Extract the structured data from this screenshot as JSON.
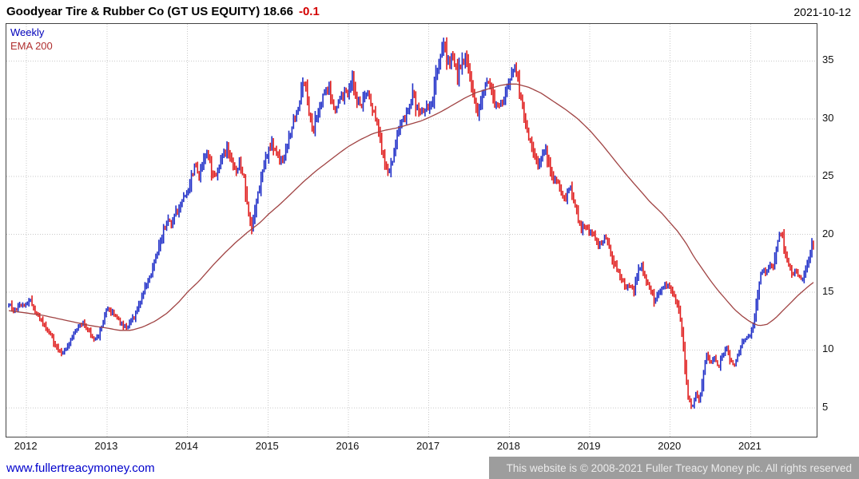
{
  "header": {
    "title": "Goodyear Tire & Rubber Co (GT US EQUITY) 18.66",
    "change": "-0.1",
    "date": "2021-10-12"
  },
  "legend": {
    "series1": "Weekly",
    "series2": "EMA 200"
  },
  "footer": {
    "link": "www.fullertreacymoney.com",
    "copyright": "This website is © 2008-2021 Fuller Treacy Money plc. All rights reserved"
  },
  "colors": {
    "title": "#000000",
    "change_negative": "#d40000",
    "up_bar": "#2130c8",
    "down_bar": "#e01f1f",
    "ema_line": "#a04343",
    "grid": "#c9c9c9",
    "border": "#444444",
    "axis_text": "#111111",
    "legend_weekly": "#0000bb",
    "legend_ema": "#b03030",
    "link": "#0000cc",
    "footer_bg": "#9d9d9d",
    "footer_text": "#ebebeb"
  },
  "chart_data": {
    "type": "candlestick",
    "title": "Goodyear Tire & Rubber Co (GT US EQUITY)",
    "interval": "Weekly",
    "overlay": "EMA 200",
    "last_price": 18.66,
    "change": -0.1,
    "xlabel": "",
    "ylabel": "",
    "grid": true,
    "legend_position": "top-left",
    "x_ticks": [
      2012,
      2013,
      2014,
      2015,
      2016,
      2017,
      2018,
      2019,
      2020,
      2021
    ],
    "y_ticks": [
      5,
      10,
      15,
      20,
      25,
      30,
      35
    ],
    "x_range": [
      2011.75,
      2021.82
    ],
    "y_range": [
      2.5,
      38.2
    ],
    "price_anchors": [
      [
        2011.78,
        14.0
      ],
      [
        2011.85,
        13.3
      ],
      [
        2011.92,
        13.8
      ],
      [
        2012.0,
        14.0
      ],
      [
        2012.05,
        14.3
      ],
      [
        2012.1,
        13.3
      ],
      [
        2012.15,
        12.8
      ],
      [
        2012.2,
        12.3
      ],
      [
        2012.25,
        11.8
      ],
      [
        2012.3,
        11.3
      ],
      [
        2012.35,
        10.5
      ],
      [
        2012.4,
        9.9
      ],
      [
        2012.45,
        9.7
      ],
      [
        2012.5,
        10.3
      ],
      [
        2012.55,
        10.9
      ],
      [
        2012.6,
        11.5
      ],
      [
        2012.65,
        12.0
      ],
      [
        2012.7,
        12.3
      ],
      [
        2012.75,
        11.9
      ],
      [
        2012.8,
        11.4
      ],
      [
        2012.85,
        10.9
      ],
      [
        2012.9,
        11.3
      ],
      [
        2012.95,
        12.4
      ],
      [
        2013.0,
        13.6
      ],
      [
        2013.05,
        13.3
      ],
      [
        2013.1,
        13.0
      ],
      [
        2013.15,
        12.5
      ],
      [
        2013.2,
        12.1
      ],
      [
        2013.25,
        11.9
      ],
      [
        2013.3,
        12.5
      ],
      [
        2013.35,
        13.0
      ],
      [
        2013.4,
        14.0
      ],
      [
        2013.45,
        15.0
      ],
      [
        2013.5,
        15.8
      ],
      [
        2013.55,
        16.5
      ],
      [
        2013.6,
        17.8
      ],
      [
        2013.65,
        19.0
      ],
      [
        2013.7,
        20.3
      ],
      [
        2013.75,
        21.3
      ],
      [
        2013.8,
        20.8
      ],
      [
        2013.85,
        21.8
      ],
      [
        2013.9,
        22.3
      ],
      [
        2013.95,
        23.0
      ],
      [
        2014.0,
        23.8
      ],
      [
        2014.05,
        25.0
      ],
      [
        2014.1,
        26.0
      ],
      [
        2014.15,
        25.0
      ],
      [
        2014.2,
        26.5
      ],
      [
        2014.25,
        27.2
      ],
      [
        2014.3,
        25.5
      ],
      [
        2014.35,
        24.8
      ],
      [
        2014.4,
        26.0
      ],
      [
        2014.45,
        27.0
      ],
      [
        2014.5,
        27.5
      ],
      [
        2014.55,
        26.3
      ],
      [
        2014.6,
        25.3
      ],
      [
        2014.65,
        26.3
      ],
      [
        2014.7,
        25.0
      ],
      [
        2014.75,
        22.0
      ],
      [
        2014.8,
        20.3
      ],
      [
        2014.85,
        22.8
      ],
      [
        2014.9,
        24.3
      ],
      [
        2014.95,
        26.0
      ],
      [
        2015.0,
        27.2
      ],
      [
        2015.05,
        27.8
      ],
      [
        2015.1,
        27.0
      ],
      [
        2015.15,
        26.3
      ],
      [
        2015.2,
        26.8
      ],
      [
        2015.25,
        28.0
      ],
      [
        2015.3,
        29.3
      ],
      [
        2015.35,
        30.5
      ],
      [
        2015.4,
        31.8
      ],
      [
        2015.44,
        33.8
      ],
      [
        2015.48,
        32.3
      ],
      [
        2015.52,
        30.0
      ],
      [
        2015.56,
        28.8
      ],
      [
        2015.6,
        30.0
      ],
      [
        2015.65,
        31.3
      ],
      [
        2015.7,
        32.3
      ],
      [
        2015.75,
        32.8
      ],
      [
        2015.8,
        31.5
      ],
      [
        2015.85,
        30.8
      ],
      [
        2015.9,
        31.8
      ],
      [
        2015.95,
        32.3
      ],
      [
        2016.0,
        32.5
      ],
      [
        2016.05,
        33.3
      ],
      [
        2016.1,
        32.0
      ],
      [
        2016.15,
        30.8
      ],
      [
        2016.2,
        31.8
      ],
      [
        2016.25,
        32.3
      ],
      [
        2016.3,
        31.0
      ],
      [
        2016.35,
        30.0
      ],
      [
        2016.4,
        28.0
      ],
      [
        2016.45,
        26.3
      ],
      [
        2016.5,
        25.5
      ],
      [
        2016.55,
        26.5
      ],
      [
        2016.6,
        28.3
      ],
      [
        2016.65,
        29.3
      ],
      [
        2016.7,
        30.3
      ],
      [
        2016.75,
        31.0
      ],
      [
        2016.8,
        32.0
      ],
      [
        2016.85,
        31.0
      ],
      [
        2016.9,
        30.3
      ],
      [
        2016.95,
        30.8
      ],
      [
        2017.0,
        31.0
      ],
      [
        2017.05,
        32.0
      ],
      [
        2017.1,
        34.0
      ],
      [
        2017.15,
        35.3
      ],
      [
        2017.18,
        36.2
      ],
      [
        2017.25,
        34.8
      ],
      [
        2017.3,
        35.5
      ],
      [
        2017.35,
        33.8
      ],
      [
        2017.4,
        34.8
      ],
      [
        2017.45,
        35.5
      ],
      [
        2017.5,
        34.0
      ],
      [
        2017.55,
        31.8
      ],
      [
        2017.6,
        30.3
      ],
      [
        2017.65,
        31.5
      ],
      [
        2017.7,
        32.8
      ],
      [
        2017.75,
        33.3
      ],
      [
        2017.8,
        31.8
      ],
      [
        2017.85,
        30.8
      ],
      [
        2017.9,
        31.3
      ],
      [
        2017.95,
        32.3
      ],
      [
        2018.0,
        32.8
      ],
      [
        2018.04,
        34.5
      ],
      [
        2018.1,
        33.5
      ],
      [
        2018.15,
        31.5
      ],
      [
        2018.2,
        30.0
      ],
      [
        2018.25,
        28.0
      ],
      [
        2018.3,
        27.0
      ],
      [
        2018.35,
        25.8
      ],
      [
        2018.4,
        26.8
      ],
      [
        2018.45,
        27.3
      ],
      [
        2018.5,
        26.0
      ],
      [
        2018.55,
        24.3
      ],
      [
        2018.6,
        24.8
      ],
      [
        2018.65,
        23.5
      ],
      [
        2018.7,
        23.0
      ],
      [
        2018.75,
        24.2
      ],
      [
        2018.8,
        23.0
      ],
      [
        2018.85,
        21.5
      ],
      [
        2018.9,
        20.3
      ],
      [
        2018.95,
        20.8
      ],
      [
        2019.0,
        20.3
      ],
      [
        2019.1,
        19.2
      ],
      [
        2019.2,
        19.8
      ],
      [
        2019.3,
        17.5
      ],
      [
        2019.4,
        16.0
      ],
      [
        2019.45,
        15.2
      ],
      [
        2019.5,
        15.8
      ],
      [
        2019.55,
        15.0
      ],
      [
        2019.6,
        16.8
      ],
      [
        2019.65,
        17.3
      ],
      [
        2019.7,
        16.0
      ],
      [
        2019.75,
        15.3
      ],
      [
        2019.8,
        14.3
      ],
      [
        2019.85,
        14.8
      ],
      [
        2019.9,
        15.3
      ],
      [
        2019.95,
        15.6
      ],
      [
        2020.0,
        15.3
      ],
      [
        2020.06,
        14.5
      ],
      [
        2020.12,
        13.0
      ],
      [
        2020.17,
        9.5
      ],
      [
        2020.22,
        6.0
      ],
      [
        2020.27,
        4.9
      ],
      [
        2020.32,
        6.3
      ],
      [
        2020.36,
        5.6
      ],
      [
        2020.4,
        7.2
      ],
      [
        2020.45,
        9.8
      ],
      [
        2020.5,
        8.9
      ],
      [
        2020.55,
        9.3
      ],
      [
        2020.6,
        8.5
      ],
      [
        2020.65,
        9.6
      ],
      [
        2020.7,
        10.2
      ],
      [
        2020.75,
        9.0
      ],
      [
        2020.8,
        8.7
      ],
      [
        2020.85,
        9.8
      ],
      [
        2020.9,
        10.8
      ],
      [
        2020.95,
        11.0
      ],
      [
        2021.0,
        11.2
      ],
      [
        2021.04,
        12.5
      ],
      [
        2021.08,
        14.5
      ],
      [
        2021.12,
        16.5
      ],
      [
        2021.16,
        17.2
      ],
      [
        2021.2,
        16.6
      ],
      [
        2021.24,
        17.5
      ],
      [
        2021.28,
        17.0
      ],
      [
        2021.32,
        18.8
      ],
      [
        2021.36,
        20.2
      ],
      [
        2021.4,
        19.5
      ],
      [
        2021.44,
        18.0
      ],
      [
        2021.48,
        17.2
      ],
      [
        2021.52,
        16.3
      ],
      [
        2021.56,
        17.0
      ],
      [
        2021.6,
        16.2
      ],
      [
        2021.64,
        15.9
      ],
      [
        2021.68,
        16.8
      ],
      [
        2021.72,
        17.8
      ],
      [
        2021.76,
        18.9
      ],
      [
        2021.79,
        18.66
      ]
    ],
    "ema_anchors": [
      [
        2011.78,
        13.4
      ],
      [
        2012.0,
        13.2
      ],
      [
        2012.2,
        13.0
      ],
      [
        2012.4,
        12.7
      ],
      [
        2012.6,
        12.4
      ],
      [
        2012.8,
        12.1
      ],
      [
        2013.0,
        11.9
      ],
      [
        2013.15,
        11.7
      ],
      [
        2013.3,
        11.7
      ],
      [
        2013.45,
        12.0
      ],
      [
        2013.6,
        12.5
      ],
      [
        2013.75,
        13.2
      ],
      [
        2013.9,
        14.2
      ],
      [
        2014.0,
        15.0
      ],
      [
        2014.15,
        16.0
      ],
      [
        2014.3,
        17.2
      ],
      [
        2014.45,
        18.3
      ],
      [
        2014.6,
        19.3
      ],
      [
        2014.75,
        20.2
      ],
      [
        2014.9,
        21.0
      ],
      [
        2015.0,
        21.7
      ],
      [
        2015.15,
        22.6
      ],
      [
        2015.3,
        23.6
      ],
      [
        2015.45,
        24.6
      ],
      [
        2015.6,
        25.5
      ],
      [
        2015.75,
        26.3
      ],
      [
        2015.9,
        27.1
      ],
      [
        2016.0,
        27.6
      ],
      [
        2016.15,
        28.2
      ],
      [
        2016.3,
        28.7
      ],
      [
        2016.45,
        29.0
      ],
      [
        2016.6,
        29.2
      ],
      [
        2016.75,
        29.5
      ],
      [
        2016.9,
        29.8
      ],
      [
        2017.0,
        30.1
      ],
      [
        2017.15,
        30.6
      ],
      [
        2017.3,
        31.2
      ],
      [
        2017.45,
        31.8
      ],
      [
        2017.6,
        32.3
      ],
      [
        2017.75,
        32.6
      ],
      [
        2017.9,
        32.9
      ],
      [
        2018.0,
        33.0
      ],
      [
        2018.1,
        33.0
      ],
      [
        2018.25,
        32.7
      ],
      [
        2018.4,
        32.2
      ],
      [
        2018.55,
        31.5
      ],
      [
        2018.7,
        30.8
      ],
      [
        2018.85,
        30.0
      ],
      [
        2019.0,
        29.0
      ],
      [
        2019.15,
        27.8
      ],
      [
        2019.3,
        26.5
      ],
      [
        2019.45,
        25.2
      ],
      [
        2019.6,
        24.0
      ],
      [
        2019.75,
        22.8
      ],
      [
        2019.9,
        21.8
      ],
      [
        2020.0,
        21.0
      ],
      [
        2020.1,
        20.2
      ],
      [
        2020.2,
        19.2
      ],
      [
        2020.3,
        18.0
      ],
      [
        2020.4,
        17.0
      ],
      [
        2020.5,
        16.0
      ],
      [
        2020.6,
        15.1
      ],
      [
        2020.7,
        14.3
      ],
      [
        2020.8,
        13.5
      ],
      [
        2020.9,
        12.9
      ],
      [
        2021.0,
        12.4
      ],
      [
        2021.1,
        12.1
      ],
      [
        2021.2,
        12.2
      ],
      [
        2021.3,
        12.7
      ],
      [
        2021.4,
        13.4
      ],
      [
        2021.5,
        14.1
      ],
      [
        2021.6,
        14.8
      ],
      [
        2021.7,
        15.4
      ],
      [
        2021.79,
        15.9
      ]
    ]
  }
}
